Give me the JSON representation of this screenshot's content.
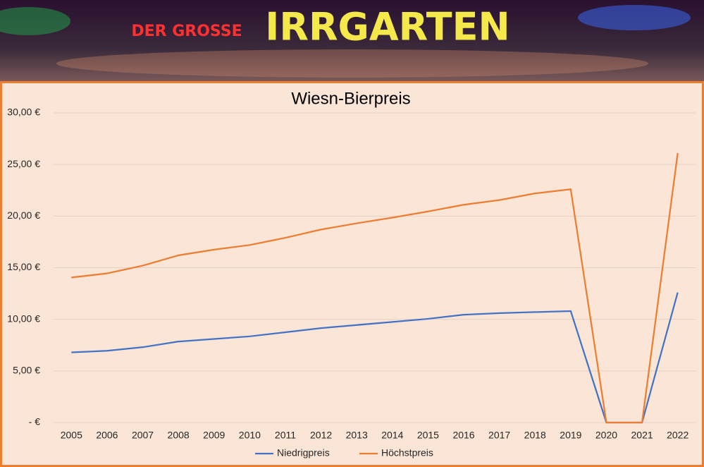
{
  "banner": {
    "texts": [
      "DER GROSSE",
      "IRRGARTEN"
    ]
  },
  "chart_data": {
    "type": "line",
    "title": "Wiesn-Bierpreis",
    "categories": [
      "2005",
      "2006",
      "2007",
      "2008",
      "2009",
      "2010",
      "2011",
      "2012",
      "2013",
      "2014",
      "2015",
      "2016",
      "2017",
      "2018",
      "2019",
      "2020",
      "2021",
      "2022"
    ],
    "series": [
      {
        "name": "Niedrigpreis",
        "color": "#4472c4",
        "values": [
          6.8,
          6.95,
          7.3,
          7.85,
          8.1,
          8.35,
          8.75,
          9.15,
          9.45,
          9.75,
          10.05,
          10.45,
          10.6,
          10.7,
          10.8,
          0,
          0,
          12.6
        ]
      },
      {
        "name": "Höchstpreis",
        "color": "#ed7d31",
        "values": [
          14.05,
          14.45,
          15.2,
          16.2,
          16.75,
          17.2,
          17.9,
          18.7,
          19.3,
          19.85,
          20.45,
          21.1,
          21.55,
          22.2,
          22.6,
          0,
          0,
          26.1
        ]
      }
    ],
    "ylim": [
      0,
      30
    ],
    "yticks": [
      {
        "value": 0,
        "label": " -  €"
      },
      {
        "value": 5,
        "label": "5,00 €"
      },
      {
        "value": 10,
        "label": "10,00 €"
      },
      {
        "value": 15,
        "label": "15,00 €"
      },
      {
        "value": 20,
        "label": "20,00 €"
      },
      {
        "value": 25,
        "label": "25,00 €"
      },
      {
        "value": 30,
        "label": "30,00 €"
      }
    ],
    "grid": true,
    "legend": "bottom"
  }
}
